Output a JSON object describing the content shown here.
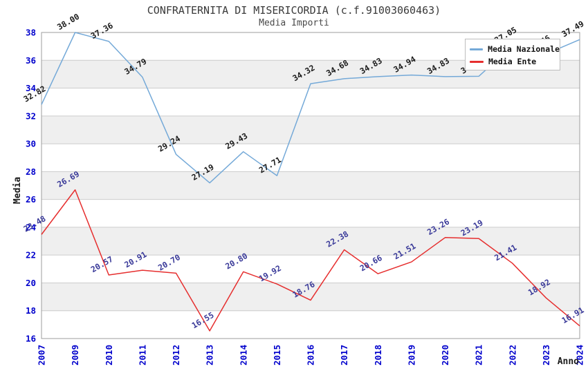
{
  "header": {
    "title": "CONFRATERNITA DI MISERICORDIA (c.f.91003060463)",
    "subtitle": "Media Importi"
  },
  "axes": {
    "y_label": "Media",
    "x_label": "Anno"
  },
  "chart_data": {
    "type": "line",
    "title": "CONFRATERNITA DI MISERICORDIA (c.f.91003060463)",
    "subtitle": "Media Importi",
    "xlabel": "Anno",
    "ylabel": "Media",
    "ylim": [
      16,
      38
    ],
    "yticks": [
      16,
      18,
      20,
      22,
      24,
      26,
      28,
      30,
      32,
      34,
      36,
      38
    ],
    "grid": true,
    "legend_position": "top-right",
    "categories": [
      "2007",
      "2009",
      "2010",
      "2011",
      "2012",
      "2013",
      "2014",
      "2015",
      "2016",
      "2017",
      "2018",
      "2019",
      "2020",
      "2021",
      "2022",
      "2023",
      "2024"
    ],
    "series": [
      {
        "name": "Media Nazionale",
        "color": "#74a9d8",
        "label_color": "#1a1a1a",
        "values": [
          32.82,
          38.0,
          37.36,
          34.79,
          29.24,
          27.19,
          29.43,
          27.71,
          34.32,
          34.68,
          34.83,
          34.94,
          34.83,
          34.85,
          37.05,
          36.46,
          37.49
        ]
      },
      {
        "name": "Media Ente",
        "color": "#e62e2e",
        "label_color": "#3a3a99",
        "values": [
          23.48,
          26.69,
          20.57,
          20.91,
          20.7,
          16.55,
          20.8,
          19.92,
          18.76,
          22.38,
          20.66,
          21.51,
          23.26,
          23.19,
          21.41,
          18.92,
          16.91
        ]
      }
    ],
    "colors": {
      "tick_label": "#0000cc",
      "grid_line": "#cccccc",
      "axis_border": "#9e9e9e",
      "band_gray": "#efefef",
      "band_white": "#ffffff"
    }
  }
}
